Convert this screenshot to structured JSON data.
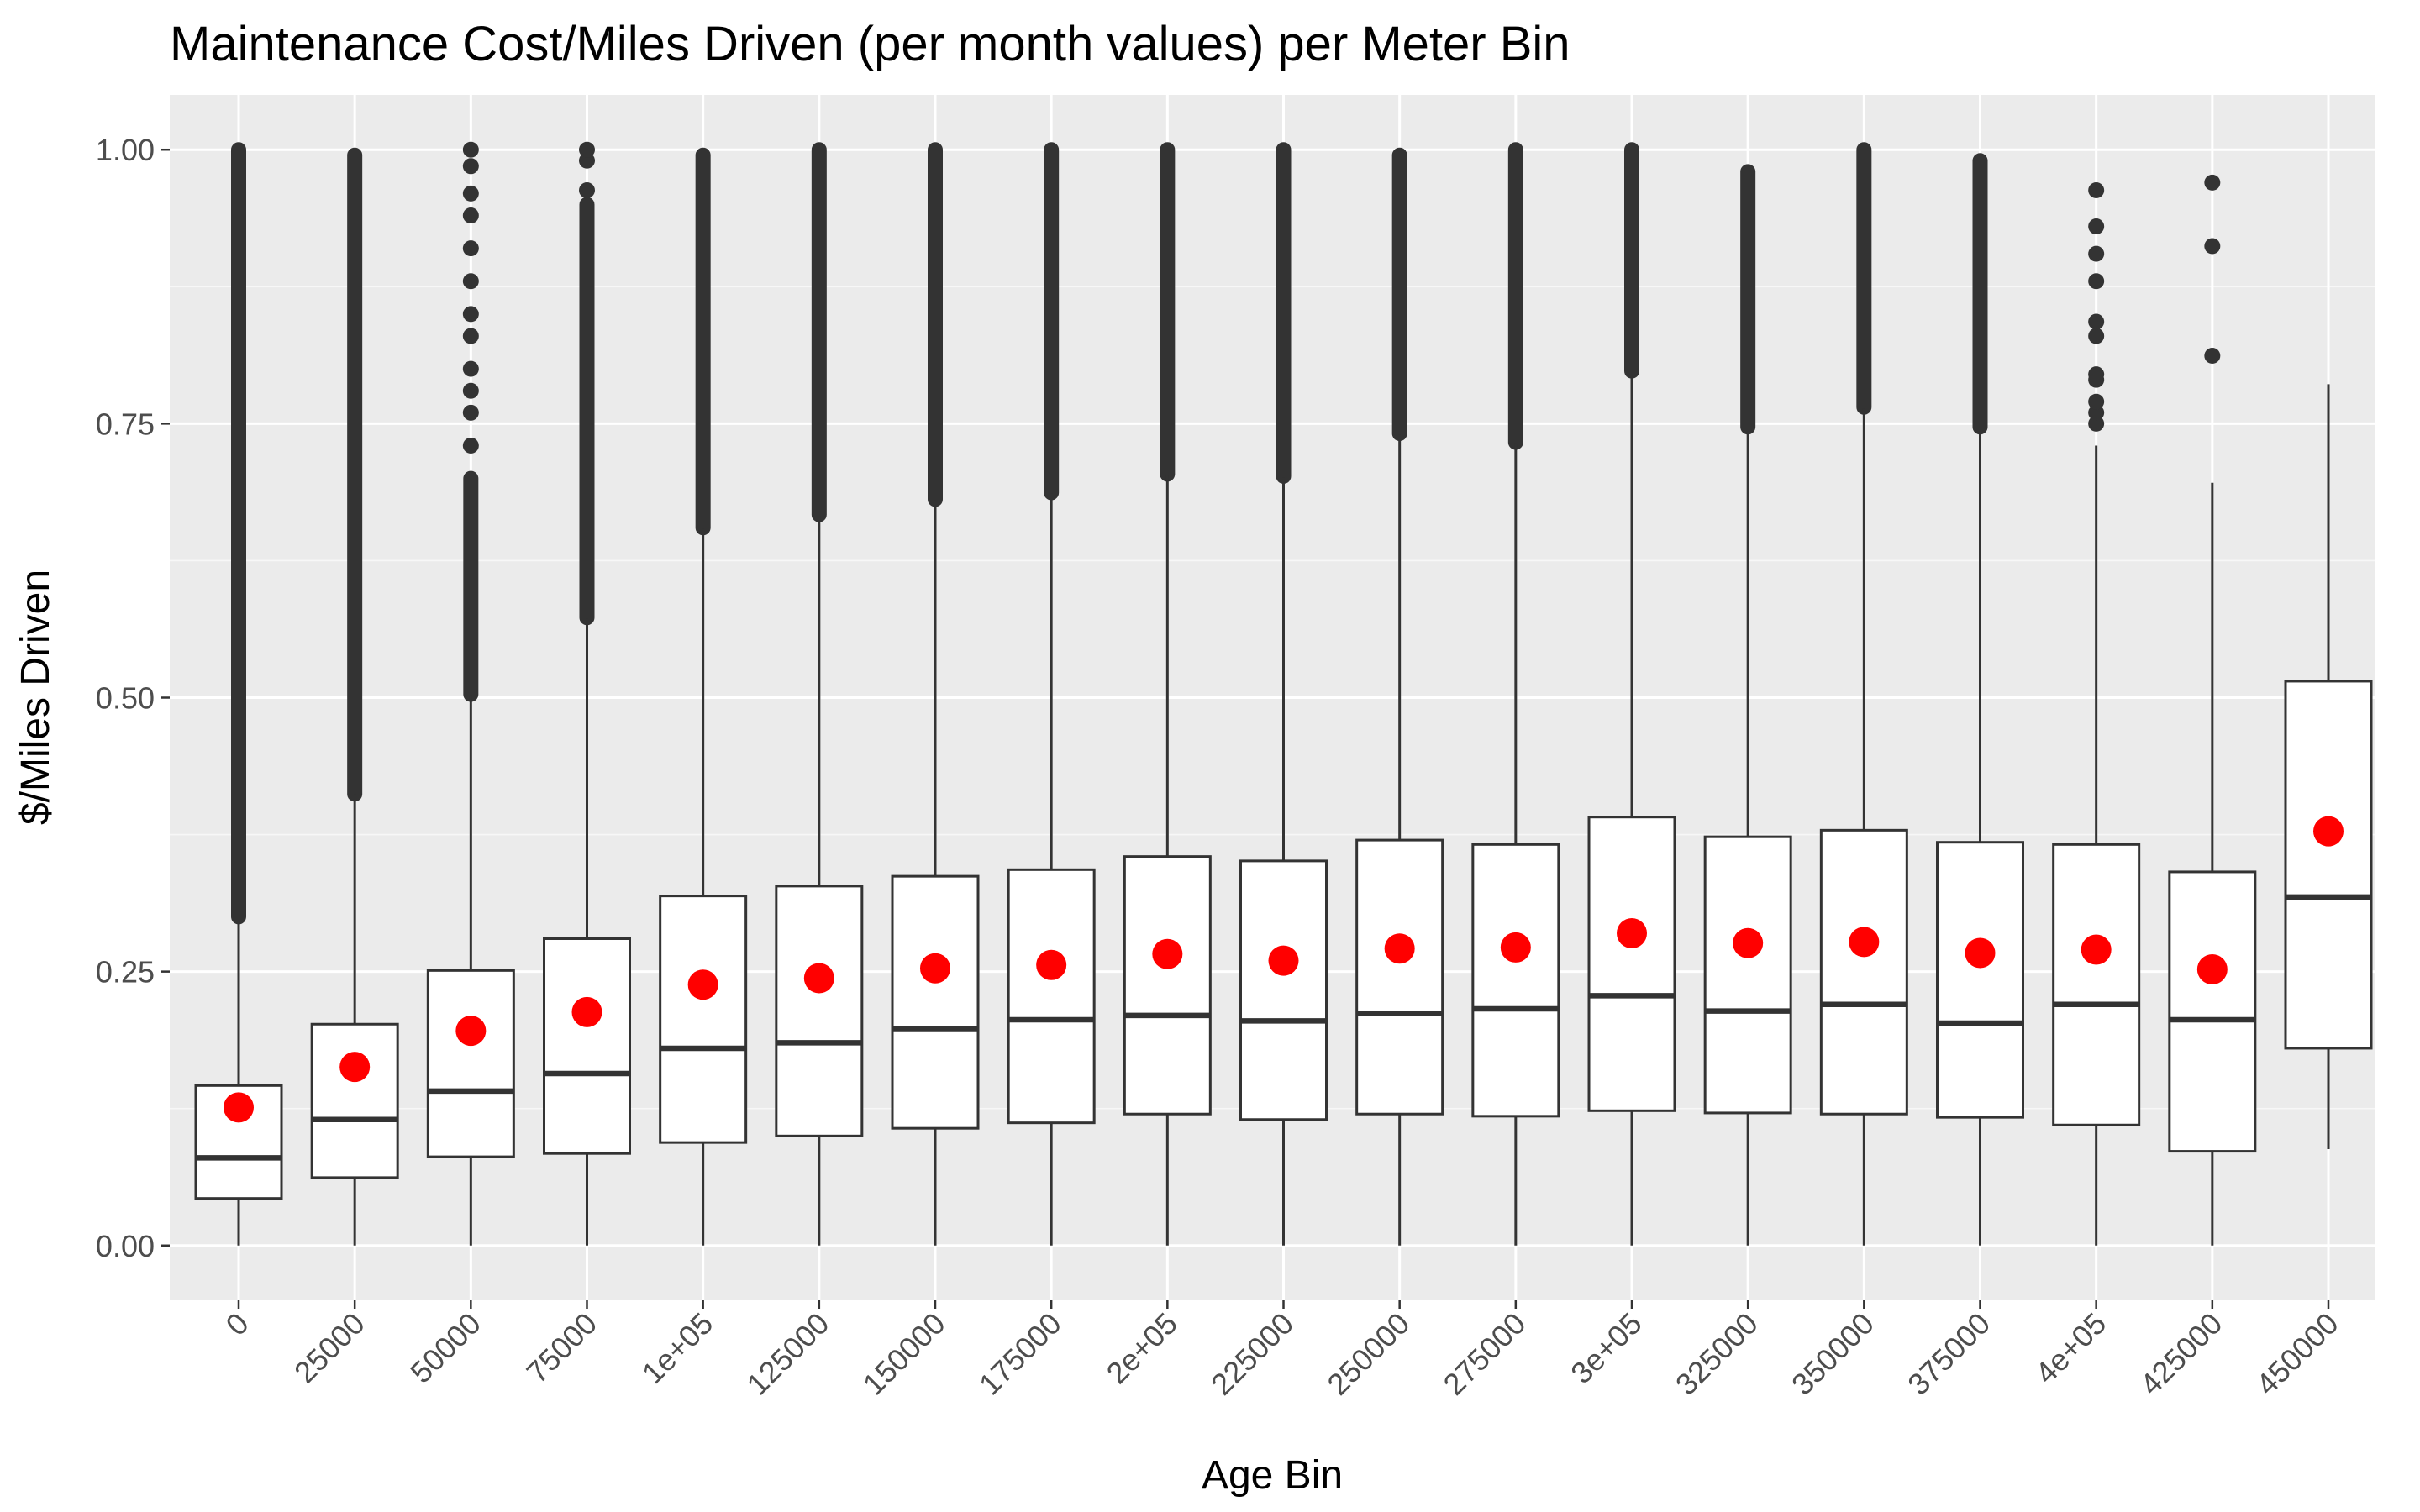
{
  "chart_data": {
    "type": "boxplot",
    "title": "Maintenance Cost/Miles Driven (per month values) per Meter Bin",
    "xlabel": "Age Bin",
    "ylabel": "$/Miles Driven",
    "ylim": [
      -0.05,
      1.05
    ],
    "yticks": [
      "0.00",
      "0.25",
      "0.50",
      "0.75",
      "1.00"
    ],
    "ytick_values": [
      0,
      0.25,
      0.5,
      0.75,
      1.0
    ],
    "grid": true,
    "background": "#ebebeb",
    "mean_marker_color": "#ff0000",
    "categories": [
      "0",
      "25000",
      "50000",
      "75000",
      "1e+05",
      "125000",
      "150000",
      "175000",
      "2e+05",
      "225000",
      "250000",
      "275000",
      "3e+05",
      "325000",
      "350000",
      "375000",
      "4e+05",
      "425000",
      "450000"
    ],
    "boxes": [
      {
        "whisker_low": 0.0,
        "q1": 0.043,
        "median": 0.08,
        "q3": 0.146,
        "whisker_high": 0.298,
        "mean": 0.126,
        "outliers_dense": [
          0.3,
          1.0
        ],
        "outliers": []
      },
      {
        "whisker_low": 0.0,
        "q1": 0.062,
        "median": 0.115,
        "q3": 0.202,
        "whisker_high": 0.412,
        "mean": 0.163,
        "outliers_dense": [
          0.412,
          0.995
        ],
        "outliers": []
      },
      {
        "whisker_low": 0.0,
        "q1": 0.081,
        "median": 0.141,
        "q3": 0.251,
        "whisker_high": 0.502,
        "mean": 0.196,
        "outliers_dense": [
          0.503,
          0.7
        ],
        "outliers": [
          0.73,
          0.76,
          0.78,
          0.8,
          0.83,
          0.85,
          0.88,
          0.91,
          0.94,
          0.96,
          0.985,
          1.0
        ]
      },
      {
        "whisker_low": 0.0,
        "q1": 0.084,
        "median": 0.157,
        "q3": 0.28,
        "whisker_high": 0.572,
        "mean": 0.213,
        "outliers_dense": [
          0.573,
          0.95
        ],
        "outliers": [
          0.963,
          0.99,
          1.0
        ]
      },
      {
        "whisker_low": 0.0,
        "q1": 0.094,
        "median": 0.18,
        "q3": 0.319,
        "whisker_high": 0.654,
        "mean": 0.238,
        "outliers_dense": [
          0.655,
          0.995
        ],
        "outliers": []
      },
      {
        "whisker_low": 0.0,
        "q1": 0.1,
        "median": 0.185,
        "q3": 0.328,
        "whisker_high": 0.666,
        "mean": 0.244,
        "outliers_dense": [
          0.667,
          1.0
        ],
        "outliers": []
      },
      {
        "whisker_low": 0.0,
        "q1": 0.107,
        "median": 0.198,
        "q3": 0.337,
        "whisker_high": 0.68,
        "mean": 0.253,
        "outliers_dense": [
          0.681,
          1.0
        ],
        "outliers": []
      },
      {
        "whisker_low": 0.0,
        "q1": 0.112,
        "median": 0.206,
        "q3": 0.343,
        "whisker_high": 0.686,
        "mean": 0.256,
        "outliers_dense": [
          0.687,
          1.0
        ],
        "outliers": []
      },
      {
        "whisker_low": 0.0,
        "q1": 0.12,
        "median": 0.21,
        "q3": 0.355,
        "whisker_high": 0.703,
        "mean": 0.266,
        "outliers_dense": [
          0.704,
          1.0
        ],
        "outliers": []
      },
      {
        "whisker_low": 0.0,
        "q1": 0.115,
        "median": 0.205,
        "q3": 0.351,
        "whisker_high": 0.701,
        "mean": 0.26,
        "outliers_dense": [
          0.702,
          1.0
        ],
        "outliers": []
      },
      {
        "whisker_low": 0.0,
        "q1": 0.12,
        "median": 0.212,
        "q3": 0.37,
        "whisker_high": 0.74,
        "mean": 0.271,
        "outliers_dense": [
          0.741,
          0.995
        ],
        "outliers": []
      },
      {
        "whisker_low": 0.0,
        "q1": 0.118,
        "median": 0.216,
        "q3": 0.366,
        "whisker_high": 0.732,
        "mean": 0.272,
        "outliers_dense": [
          0.733,
          1.0
        ],
        "outliers": []
      },
      {
        "whisker_low": 0.0,
        "q1": 0.123,
        "median": 0.228,
        "q3": 0.391,
        "whisker_high": 0.797,
        "mean": 0.285,
        "outliers_dense": [
          0.798,
          1.0
        ],
        "outliers": []
      },
      {
        "whisker_low": 0.0,
        "q1": 0.121,
        "median": 0.214,
        "q3": 0.373,
        "whisker_high": 0.746,
        "mean": 0.276,
        "outliers_dense": [
          0.747,
          0.98
        ],
        "outliers": []
      },
      {
        "whisker_low": 0.0,
        "q1": 0.12,
        "median": 0.22,
        "q3": 0.379,
        "whisker_high": 0.764,
        "mean": 0.277,
        "outliers_dense": [
          0.765,
          1.0
        ],
        "outliers": []
      },
      {
        "whisker_low": 0.0,
        "q1": 0.117,
        "median": 0.203,
        "q3": 0.368,
        "whisker_high": 0.746,
        "mean": 0.267,
        "outliers_dense": [
          0.747,
          0.99
        ],
        "outliers": []
      },
      {
        "whisker_low": 0.0,
        "q1": 0.11,
        "median": 0.22,
        "q3": 0.366,
        "whisker_high": 0.73,
        "mean": 0.27,
        "outliers_dense": [],
        "outliers": [
          0.75,
          0.76,
          0.77,
          0.79,
          0.795,
          0.83,
          0.843,
          0.88,
          0.905,
          0.93,
          0.963
        ]
      },
      {
        "whisker_low": 0.0,
        "q1": 0.086,
        "median": 0.206,
        "q3": 0.341,
        "whisker_high": 0.696,
        "mean": 0.252,
        "outliers_dense": [],
        "outliers": [
          0.812,
          0.912,
          0.97
        ]
      },
      {
        "whisker_low": 0.088,
        "q1": 0.18,
        "median": 0.318,
        "q3": 0.515,
        "whisker_high": 0.786,
        "mean": 0.378,
        "outliers_dense": [],
        "outliers": []
      }
    ]
  }
}
